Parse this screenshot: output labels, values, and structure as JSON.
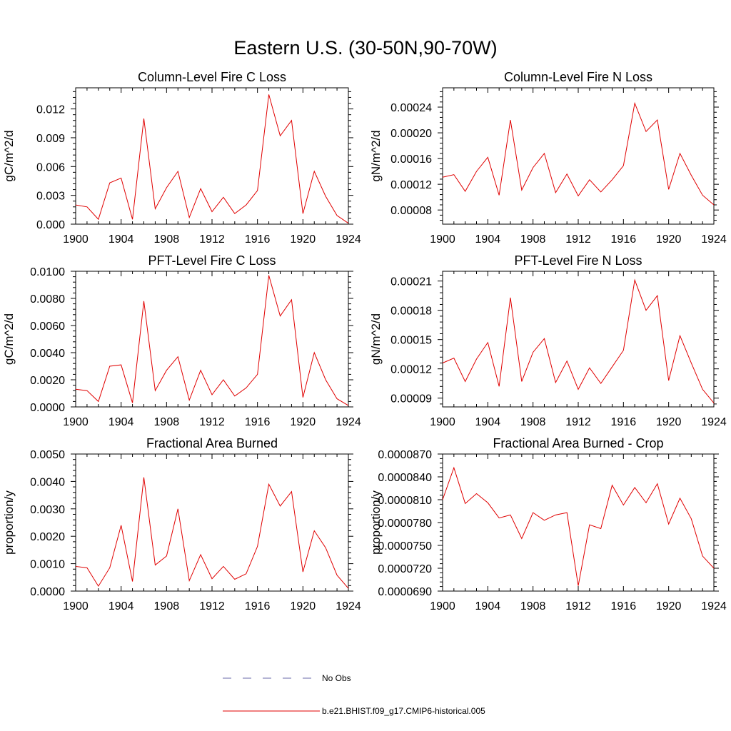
{
  "figure": {
    "title": "Eastern U.S. (30-50N,90-70W)",
    "legend": {
      "obs_label": "No Obs",
      "obs_color": "#6a6aa8",
      "model_label": "b.e21.BHIST.f09_g17.CMIP6-historical.005",
      "model_color": "#e00000"
    }
  },
  "chart_data": [
    {
      "type": "line",
      "title": "Column-Level Fire C Loss",
      "ylabel": "gC/m^2/d",
      "xlabel": "",
      "xlim": [
        1900,
        1924
      ],
      "ylim": [
        0,
        0.0142
      ],
      "yticks": [
        "0.000",
        "0.003",
        "0.006",
        "0.009",
        "0.012"
      ],
      "ytick_values": [
        0,
        0.003,
        0.006,
        0.009,
        0.012
      ],
      "xticks": [
        "1900",
        "1904",
        "1908",
        "1912",
        "1916",
        "1920",
        "1924"
      ],
      "x": [
        1900,
        1901,
        1902,
        1903,
        1904,
        1905,
        1906,
        1907,
        1908,
        1909,
        1910,
        1911,
        1912,
        1913,
        1914,
        1915,
        1916,
        1917,
        1918,
        1919,
        1920,
        1921,
        1922,
        1923,
        1924
      ],
      "series": [
        {
          "name": "b.e21.BHIST.f09_g17.CMIP6-historical.005",
          "values": [
            0.002,
            0.0018,
            0.0005,
            0.0043,
            0.0048,
            0.0005,
            0.011,
            0.0016,
            0.0038,
            0.0055,
            0.0007,
            0.0037,
            0.0013,
            0.0028,
            0.0011,
            0.002,
            0.0035,
            0.0135,
            0.0092,
            0.0108,
            0.0011,
            0.0055,
            0.0029,
            0.0009,
            0.0001
          ]
        }
      ]
    },
    {
      "type": "line",
      "title": "Column-Level Fire N Loss",
      "ylabel": "gN/m^2/d",
      "xlabel": "",
      "xlim": [
        1900,
        1924
      ],
      "ylim": [
        5.8e-05,
        0.00027
      ],
      "yticks": [
        "0.00008",
        "0.00012",
        "0.00016",
        "0.00020",
        "0.00024"
      ],
      "ytick_values": [
        8e-05,
        0.00012,
        0.00016,
        0.0002,
        0.00024
      ],
      "xticks": [
        "1900",
        "1904",
        "1908",
        "1912",
        "1916",
        "1920",
        "1924"
      ],
      "x": [
        1900,
        1901,
        1902,
        1903,
        1904,
        1905,
        1906,
        1907,
        1908,
        1909,
        1910,
        1911,
        1912,
        1913,
        1914,
        1915,
        1916,
        1917,
        1918,
        1919,
        1920,
        1921,
        1922,
        1923,
        1924
      ],
      "series": [
        {
          "name": "b.e21.BHIST.f09_g17.CMIP6-historical.005",
          "values": [
            0.000131,
            0.000135,
            0.000109,
            0.00014,
            0.000162,
            0.000103,
            0.00022,
            0.000111,
            0.000146,
            0.000168,
            0.000107,
            0.000136,
            0.000102,
            0.000127,
            0.000108,
            0.000127,
            0.000149,
            0.000246,
            0.000202,
            0.00022,
            0.000112,
            0.000168,
            0.000134,
            0.000103,
            8.8e-05
          ]
        }
      ]
    },
    {
      "type": "line",
      "title": "PFT-Level Fire C Loss",
      "ylabel": "gC/m^2/d",
      "xlabel": "",
      "xlim": [
        1900,
        1924
      ],
      "ylim": [
        0,
        0.01
      ],
      "yticks": [
        "0.0000",
        "0.0020",
        "0.0040",
        "0.0060",
        "0.0080",
        "0.0100"
      ],
      "ytick_values": [
        0,
        0.002,
        0.004,
        0.006,
        0.008,
        0.01
      ],
      "xticks": [
        "1900",
        "1904",
        "1908",
        "1912",
        "1916",
        "1920",
        "1924"
      ],
      "x": [
        1900,
        1901,
        1902,
        1903,
        1904,
        1905,
        1906,
        1907,
        1908,
        1909,
        1910,
        1911,
        1912,
        1913,
        1914,
        1915,
        1916,
        1917,
        1918,
        1919,
        1920,
        1921,
        1922,
        1923,
        1924
      ],
      "series": [
        {
          "name": "b.e21.BHIST.f09_g17.CMIP6-historical.005",
          "values": [
            0.0013,
            0.0012,
            0.0004,
            0.003,
            0.0031,
            0.0003,
            0.0078,
            0.0012,
            0.0027,
            0.0037,
            0.0005,
            0.0027,
            0.0009,
            0.002,
            0.0008,
            0.0014,
            0.0024,
            0.0097,
            0.0067,
            0.0079,
            0.0007,
            0.004,
            0.002,
            0.0006,
            0.0001
          ]
        }
      ]
    },
    {
      "type": "line",
      "title": "PFT-Level Fire N Loss",
      "ylabel": "gN/m^2/d",
      "xlabel": "",
      "xlim": [
        1900,
        1924
      ],
      "ylim": [
        8.1e-05,
        0.00022
      ],
      "yticks": [
        "0.00009",
        "0.00012",
        "0.00015",
        "0.00018",
        "0.00021"
      ],
      "ytick_values": [
        9e-05,
        0.00012,
        0.00015,
        0.00018,
        0.00021
      ],
      "xticks": [
        "1900",
        "1904",
        "1908",
        "1912",
        "1916",
        "1920",
        "1924"
      ],
      "x": [
        1900,
        1901,
        1902,
        1903,
        1904,
        1905,
        1906,
        1907,
        1908,
        1909,
        1910,
        1911,
        1912,
        1913,
        1914,
        1915,
        1916,
        1917,
        1918,
        1919,
        1920,
        1921,
        1922,
        1923,
        1924
      ],
      "series": [
        {
          "name": "b.e21.BHIST.f09_g17.CMIP6-historical.005",
          "values": [
            0.000126,
            0.000131,
            0.000107,
            0.00013,
            0.000147,
            0.000102,
            0.000193,
            0.000107,
            0.000137,
            0.000151,
            0.000106,
            0.000128,
            9.9e-05,
            0.000121,
            0.000105,
            0.000122,
            0.000139,
            0.000211,
            0.00018,
            0.000195,
            0.000108,
            0.000154,
            0.000126,
            9.9e-05,
            8.5e-05
          ]
        }
      ]
    },
    {
      "type": "line",
      "title": "Fractional Area Burned",
      "ylabel": "proportion/y",
      "xlabel": "",
      "xlim": [
        1900,
        1924
      ],
      "ylim": [
        0,
        0.005
      ],
      "yticks": [
        "0.0000",
        "0.0010",
        "0.0020",
        "0.0030",
        "0.0040",
        "0.0050"
      ],
      "ytick_values": [
        0,
        0.001,
        0.002,
        0.003,
        0.004,
        0.005
      ],
      "xticks": [
        "1900",
        "1904",
        "1908",
        "1912",
        "1916",
        "1920",
        "1924"
      ],
      "x": [
        1900,
        1901,
        1902,
        1903,
        1904,
        1905,
        1906,
        1907,
        1908,
        1909,
        1910,
        1911,
        1912,
        1913,
        1914,
        1915,
        1916,
        1917,
        1918,
        1919,
        1920,
        1921,
        1922,
        1923,
        1924
      ],
      "series": [
        {
          "name": "b.e21.BHIST.f09_g17.CMIP6-historical.005",
          "values": [
            0.0009,
            0.00085,
            0.00018,
            0.00085,
            0.0024,
            0.00035,
            0.00415,
            0.00095,
            0.00128,
            0.003,
            0.00038,
            0.00133,
            0.00045,
            0.0009,
            0.00043,
            0.00063,
            0.00163,
            0.0039,
            0.0031,
            0.00363,
            0.0007,
            0.0022,
            0.00158,
            0.00058,
            0.0001
          ]
        }
      ]
    },
    {
      "type": "line",
      "title": "Fractional Area Burned - Crop",
      "ylabel": "proportion/y",
      "xlabel": "",
      "xlim": [
        1900,
        1924
      ],
      "ylim": [
        6.9e-05,
        8.7e-05
      ],
      "yticks": [
        "0.0000690",
        "0.0000720",
        "0.0000750",
        "0.0000780",
        "0.0000810",
        "0.0000840",
        "0.0000870"
      ],
      "ytick_values": [
        6.9e-05,
        7.2e-05,
        7.5e-05,
        7.8e-05,
        8.1e-05,
        8.4e-05,
        8.7e-05
      ],
      "xticks": [
        "1900",
        "1904",
        "1908",
        "1912",
        "1916",
        "1920",
        "1924"
      ],
      "x": [
        1900,
        1901,
        1902,
        1903,
        1904,
        1905,
        1906,
        1907,
        1908,
        1909,
        1910,
        1911,
        1912,
        1913,
        1914,
        1915,
        1916,
        1917,
        1918,
        1919,
        1920,
        1921,
        1922,
        1923,
        1924
      ],
      "series": [
        {
          "name": "b.e21.BHIST.f09_g17.CMIP6-historical.005",
          "values": [
            8.1e-05,
            8.52e-05,
            8.05e-05,
            8.18e-05,
            8.06e-05,
            7.86e-05,
            7.9e-05,
            7.59e-05,
            7.93e-05,
            7.83e-05,
            7.9e-05,
            7.93e-05,
            6.97e-05,
            7.77e-05,
            7.72e-05,
            8.29e-05,
            8.03e-05,
            8.26e-05,
            8.06e-05,
            8.31e-05,
            7.78e-05,
            8.12e-05,
            7.85e-05,
            7.36e-05,
            7.2e-05
          ]
        }
      ]
    }
  ]
}
